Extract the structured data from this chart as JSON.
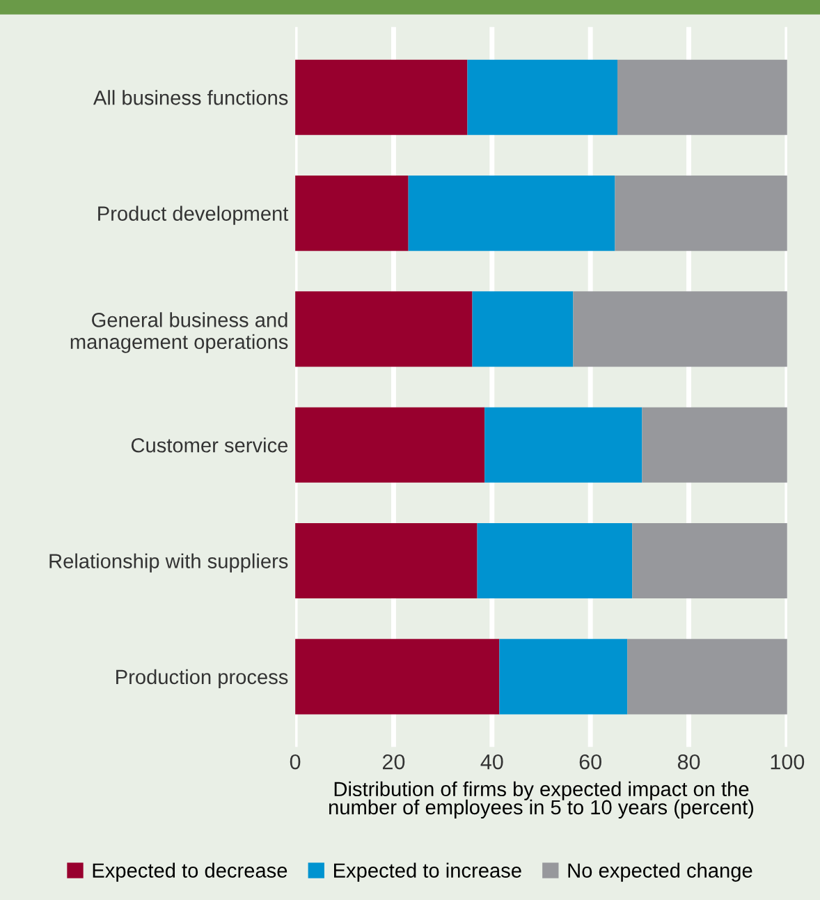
{
  "chart_data": {
    "type": "bar",
    "orientation": "horizontal",
    "stacked": true,
    "categories": [
      "All business functions",
      "Product development",
      "General business and\nmanagement operations",
      "Customer service",
      "Relationship with suppliers",
      "Production process"
    ],
    "series": [
      {
        "name": "Expected to decrease",
        "color": "#98002e",
        "values": [
          35,
          23,
          36,
          38.5,
          37,
          41.5
        ]
      },
      {
        "name": "Expected to increase",
        "color": "#0093d0",
        "values": [
          30.5,
          42,
          20.5,
          32,
          31.5,
          26
        ]
      },
      {
        "name": "No expected change",
        "color": "#97989c",
        "values": [
          34.5,
          35,
          43.5,
          29.5,
          31.5,
          32.5
        ]
      }
    ],
    "xlabel": "Distribution of firms by expected impact on the\nnumber of employees in 5 to 10 years (percent)",
    "xlim": [
      0,
      100
    ],
    "xticks": [
      0,
      20,
      40,
      60,
      80,
      100
    ],
    "grid": "x",
    "legend": "bottom"
  }
}
